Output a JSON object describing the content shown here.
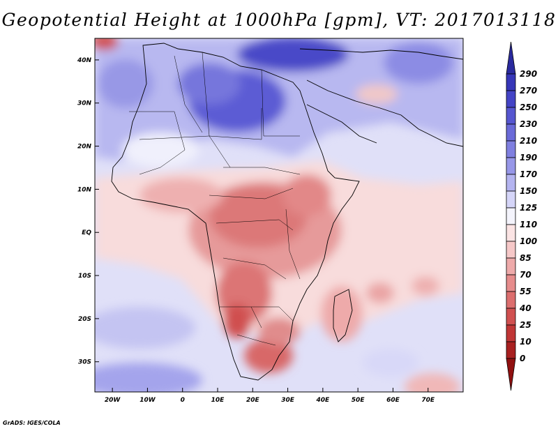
{
  "title": "Geopotential Height at 1000hPa [gpm], VT: 2017013118",
  "credit": "GrADS: IGES/COLA",
  "map": {
    "variable": "Geopotential Height",
    "level": "1000hPa",
    "units": "gpm",
    "valid_time": "2017013118",
    "lon_range": [
      -25,
      80
    ],
    "lat_range": [
      -37,
      45
    ],
    "lat_ticks": [
      {
        "value": 40,
        "label": "40N"
      },
      {
        "value": 30,
        "label": "30N"
      },
      {
        "value": 20,
        "label": "20N"
      },
      {
        "value": 10,
        "label": "10N"
      },
      {
        "value": 0,
        "label": "EQ"
      },
      {
        "value": -10,
        "label": "10S"
      },
      {
        "value": -20,
        "label": "20S"
      },
      {
        "value": -30,
        "label": "30S"
      }
    ],
    "lon_ticks": [
      {
        "value": -20,
        "label": "20W"
      },
      {
        "value": -10,
        "label": "10W"
      },
      {
        "value": 0,
        "label": "0"
      },
      {
        "value": 10,
        "label": "10E"
      },
      {
        "value": 20,
        "label": "20E"
      },
      {
        "value": 30,
        "label": "30E"
      },
      {
        "value": 40,
        "label": "40E"
      },
      {
        "value": 50,
        "label": "50E"
      },
      {
        "value": 60,
        "label": "60E"
      },
      {
        "value": 70,
        "label": "70E"
      }
    ]
  },
  "colorbar": {
    "labels": [
      "290",
      "270",
      "250",
      "230",
      "210",
      "190",
      "170",
      "150",
      "125",
      "110",
      "100",
      "85",
      "70",
      "55",
      "40",
      "25",
      "10",
      "0"
    ],
    "colors": [
      "#2a2a9e",
      "#3636b8",
      "#4444c6",
      "#5656d0",
      "#6a6ad8",
      "#7f7fe0",
      "#9797e8",
      "#b4b4f0",
      "#d5d5f8",
      "#f4f4fc",
      "#fbe4e4",
      "#f6c8c8",
      "#eeaaaa",
      "#e68c8c",
      "#dc6e6e",
      "#d05050",
      "#c03636",
      "#a82020",
      "#901010"
    ]
  }
}
